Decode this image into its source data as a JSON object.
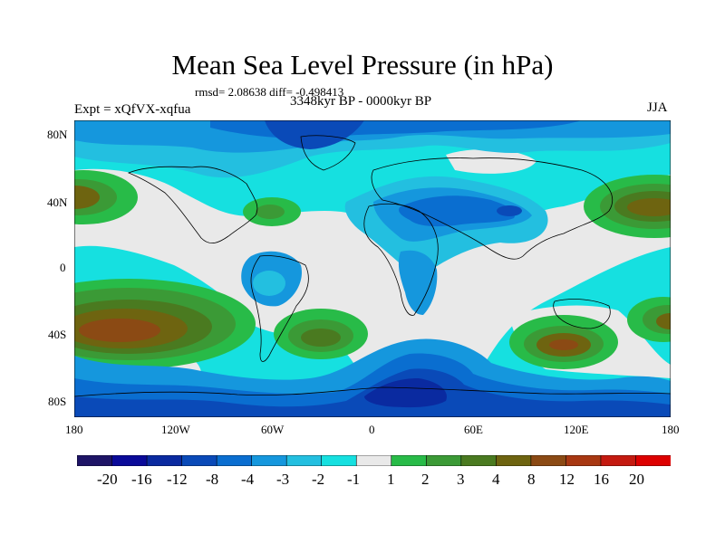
{
  "title": "Mean Sea Level Pressure (in hPa)",
  "stats": "rmsd= 2.08638 diff= -0.498413",
  "period": "3348kyr BP - 0000kyr BP",
  "experiment": "Expt = xQfVX-xqfua",
  "season": "JJA",
  "lat_labels": [
    "80N",
    "40N",
    "0",
    "40S",
    "80S"
  ],
  "lon_labels": [
    "180",
    "120W",
    "60W",
    "0",
    "60E",
    "120E",
    "180"
  ],
  "colorbar": {
    "labels": [
      "-20",
      "-16",
      "-12",
      "-8",
      "-4",
      "-3",
      "-2",
      "-1",
      "1",
      "2",
      "3",
      "4",
      "8",
      "12",
      "16",
      "20"
    ],
    "colors": [
      "#1e1466",
      "#0a0a99",
      "#0a2aa0",
      "#0a4ab8",
      "#0a6ed0",
      "#1597dd",
      "#23bfe0",
      "#16e0e0",
      "#e9e9e9",
      "#28bb48",
      "#3b9a36",
      "#4a7a20",
      "#6e6410",
      "#8b4a14",
      "#a83812",
      "#c41a10",
      "#dd0000"
    ]
  },
  "colors": {
    "ocean_base": "#16e0e0",
    "neutral": "#e9e9e9",
    "coast": "#000000"
  }
}
